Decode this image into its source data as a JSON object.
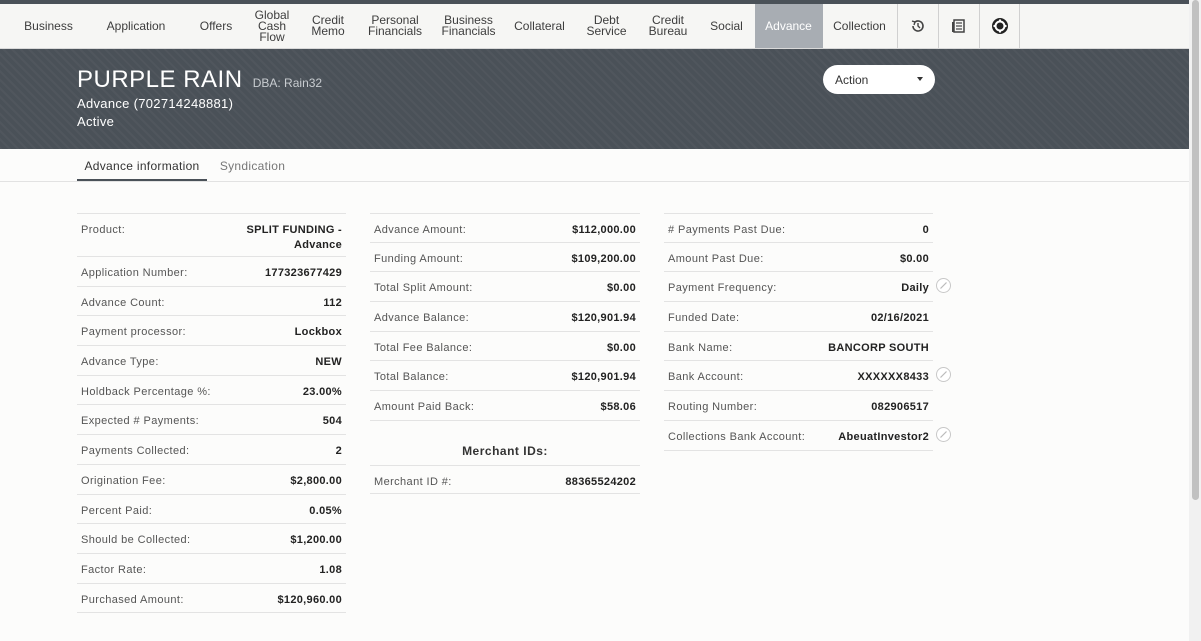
{
  "nav": {
    "items": [
      {
        "label": "Business",
        "w": 72
      },
      {
        "label": "Application",
        "w": 103
      },
      {
        "label": "Offers",
        "w": 57
      },
      {
        "label": "Global\nCash\nFlow",
        "w": 55
      },
      {
        "label": "Credit\nMemo",
        "w": 57
      },
      {
        "label": "Personal\nFinancials",
        "w": 77
      },
      {
        "label": "Business\nFinancials",
        "w": 70
      },
      {
        "label": "Collateral",
        "w": 72
      },
      {
        "label": "Debt\nService",
        "w": 62
      },
      {
        "label": "Credit\nBureau",
        "w": 61
      },
      {
        "label": "Social",
        "w": 56
      },
      {
        "label": "Advance",
        "w": 68,
        "active": true
      },
      {
        "label": "Collection",
        "w": 74
      }
    ],
    "icons": [
      "history-icon",
      "ledger-icon",
      "settings-icon"
    ]
  },
  "header": {
    "title": "PURPLE RAIN",
    "dba": "DBA: Rain32",
    "subtitle": "Advance (702714248881)",
    "status": "Active",
    "action_label": "Action"
  },
  "tabs": [
    {
      "label": "Advance information",
      "active": true
    },
    {
      "label": "Syndication",
      "active": false
    }
  ],
  "col1": [
    {
      "label": "Product:",
      "value": "SPLIT FUNDING -\nAdvance",
      "tall": true
    },
    {
      "label": "Application Number:",
      "value": "177323677429"
    },
    {
      "label": "Advance Count:",
      "value": "112"
    },
    {
      "label": "Payment processor:",
      "value": "Lockbox"
    },
    {
      "label": "Advance Type:",
      "value": "NEW"
    },
    {
      "label": "Holdback Percentage %:",
      "value": "23.00%"
    },
    {
      "label": "Expected # Payments:",
      "value": "504"
    },
    {
      "label": "Payments Collected:",
      "value": "2"
    },
    {
      "label": "Origination Fee:",
      "value": "$2,800.00"
    },
    {
      "label": "Percent Paid:",
      "value": "0.05%"
    },
    {
      "label": "Should be Collected:",
      "value": "$1,200.00"
    },
    {
      "label": "Factor Rate:",
      "value": "1.08"
    },
    {
      "label": "Purchased Amount:",
      "value": "$120,960.00"
    }
  ],
  "col2": [
    {
      "label": "Advance Amount:",
      "value": "$112,000.00"
    },
    {
      "label": "Funding Amount:",
      "value": "$109,200.00"
    },
    {
      "label": "Total Split Amount:",
      "value": "$0.00"
    },
    {
      "label": "Advance Balance:",
      "value": "$120,901.94"
    },
    {
      "label": "Total Fee Balance:",
      "value": "$0.00"
    },
    {
      "label": "Total Balance:",
      "value": "$120,901.94"
    },
    {
      "label": "Amount Paid Back:",
      "value": "$58.06"
    }
  ],
  "merchant": {
    "title": "Merchant IDs:",
    "label": "Merchant ID #:",
    "value": "88365524202"
  },
  "col3": [
    {
      "label": "# Payments Past Due:",
      "value": "0"
    },
    {
      "label": "Amount Past Due:",
      "value": "$0.00"
    },
    {
      "label": "Payment Frequency:",
      "value": "Daily",
      "edit": true
    },
    {
      "label": "Funded Date:",
      "value": "02/16/2021"
    },
    {
      "label": "Bank Name:",
      "value": "BANCORP SOUTH"
    },
    {
      "label": "Bank Account:",
      "value": "XXXXXX8433",
      "edit": true
    },
    {
      "label": "Routing Number:",
      "value": "082906517"
    },
    {
      "label": "Collections Bank Account:",
      "value": "AbeuatInvestor2",
      "edit": true
    }
  ]
}
